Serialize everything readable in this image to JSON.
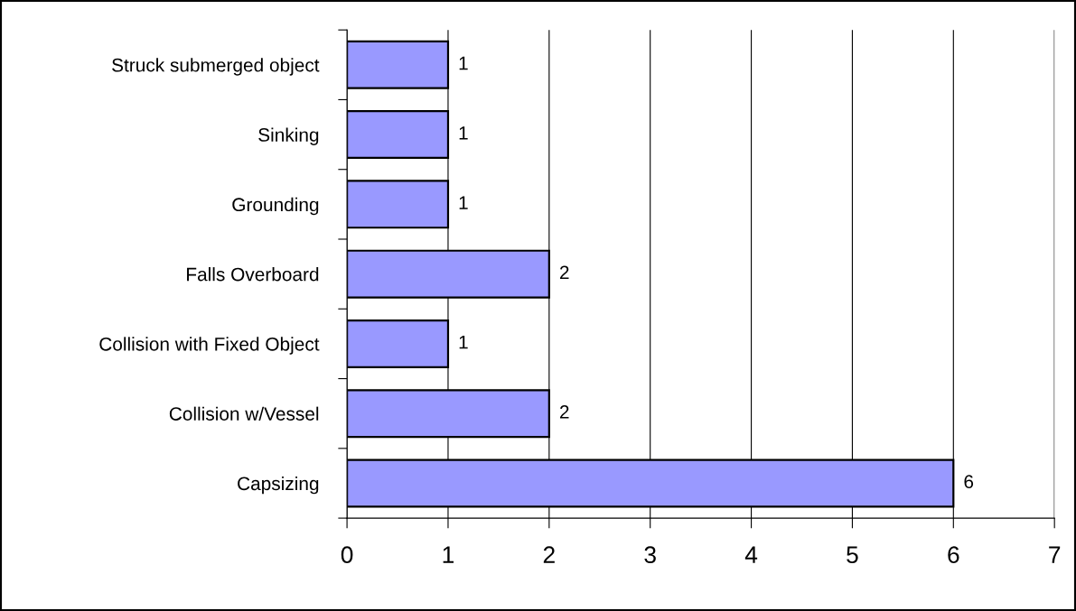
{
  "chart_data": {
    "type": "bar",
    "orientation": "horizontal",
    "categories": [
      "Struck submerged object",
      "Sinking",
      "Grounding",
      "Falls Overboard",
      "Collision with Fixed Object",
      "Collision w/Vessel",
      "Capsizing"
    ],
    "values": [
      1,
      1,
      1,
      2,
      1,
      2,
      6
    ],
    "color": "#9999ff",
    "xlim": [
      0,
      7
    ],
    "xticks": [
      0,
      1,
      2,
      3,
      4,
      5,
      6,
      7
    ],
    "grid": "x",
    "data_labels": true
  }
}
